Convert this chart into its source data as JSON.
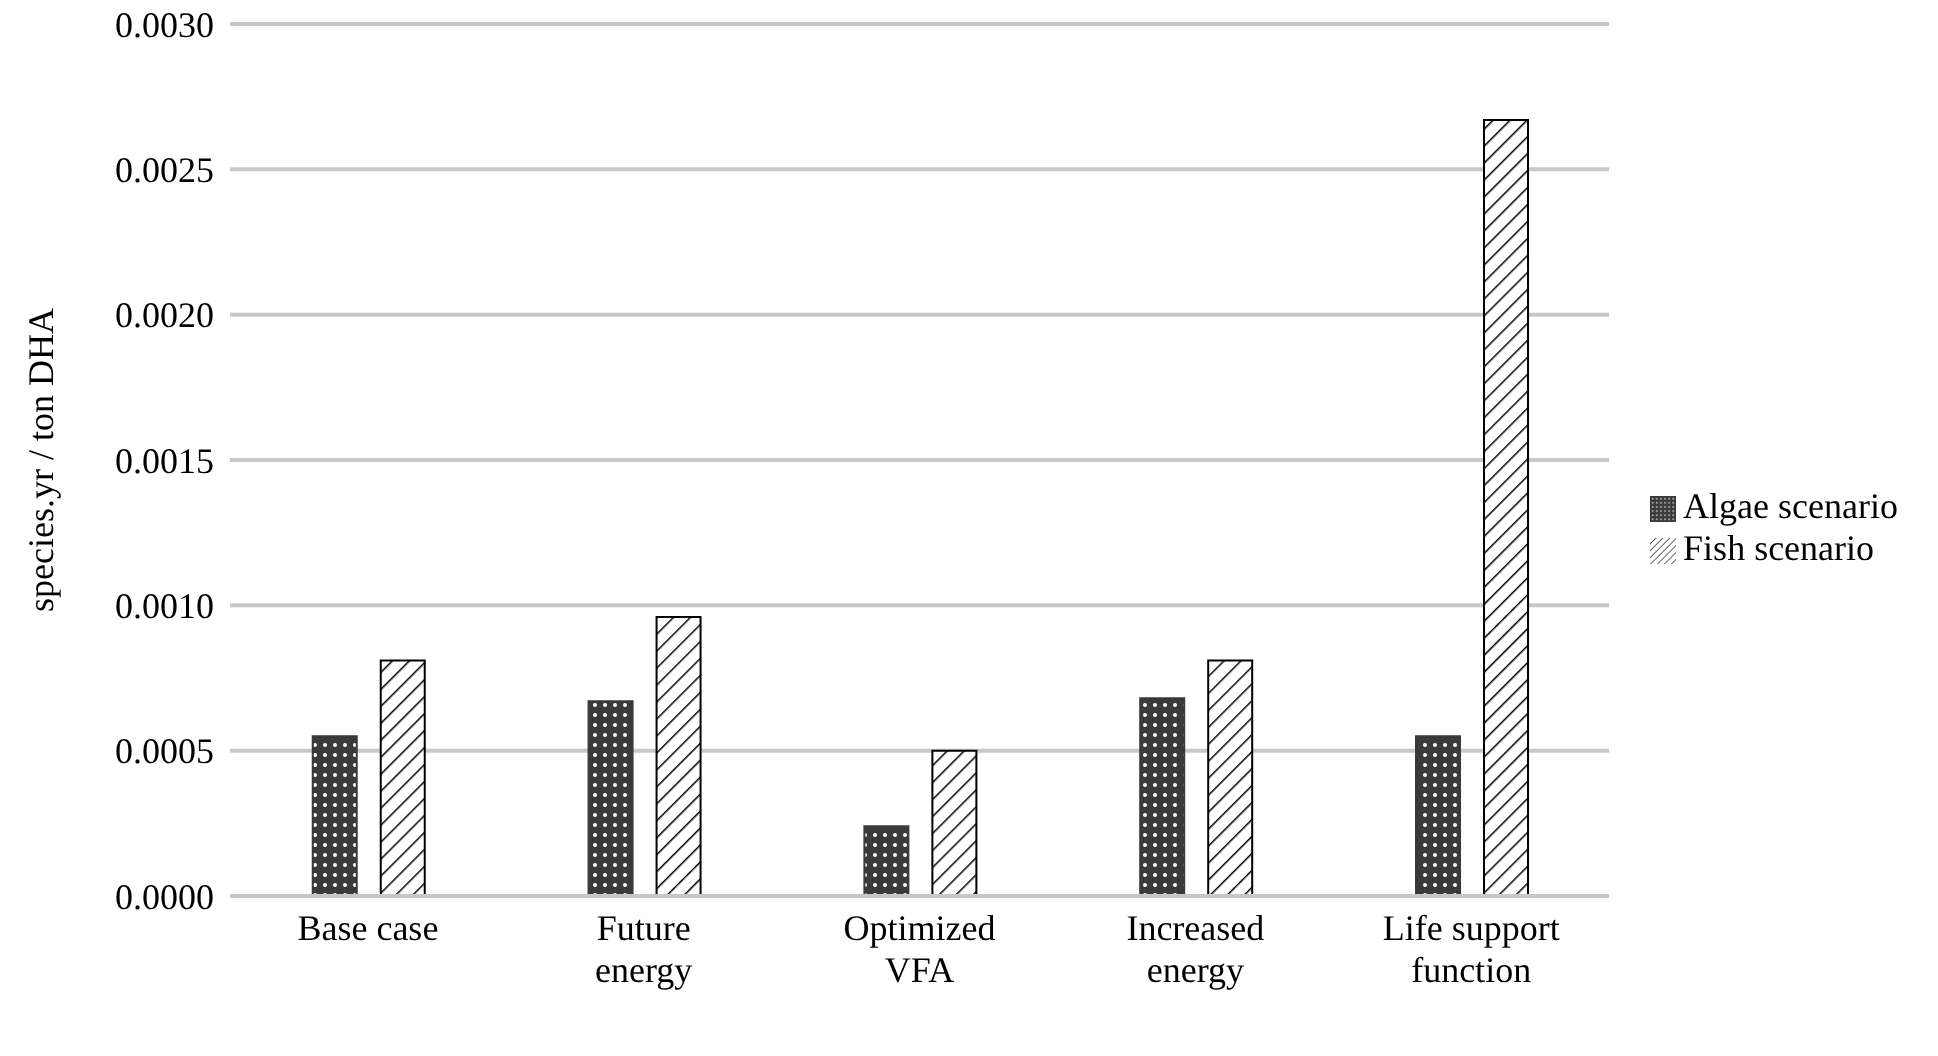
{
  "chart_data": {
    "type": "bar",
    "ylabel": "species.yr / ton DHA",
    "categories": [
      "Base case",
      "Future energy",
      "Optimized VFA",
      "Increased energy",
      "Life support function"
    ],
    "series": [
      {
        "name": "Algae scenario",
        "color": "#3a3a3a",
        "values": [
          0.00055,
          0.00067,
          0.00024,
          0.00068,
          0.00055
        ]
      },
      {
        "name": "Fish scenario",
        "color": "#000000",
        "values": [
          0.00081,
          0.00096,
          0.0005,
          0.00081,
          0.00267
        ]
      }
    ],
    "ylim": [
      0,
      0.003
    ],
    "yticks": [
      {
        "value": 0,
        "label": "0.0000"
      },
      {
        "value": 0.0005,
        "label": "0.0005"
      },
      {
        "value": 0.001,
        "label": "0.0010"
      },
      {
        "value": 0.0015,
        "label": "0.0015"
      },
      {
        "value": 0.002,
        "label": "0.0020"
      },
      {
        "value": 0.0025,
        "label": "0.0025"
      },
      {
        "value": 0.003,
        "label": "0.0030"
      }
    ],
    "grid": "y",
    "legend": "right"
  }
}
